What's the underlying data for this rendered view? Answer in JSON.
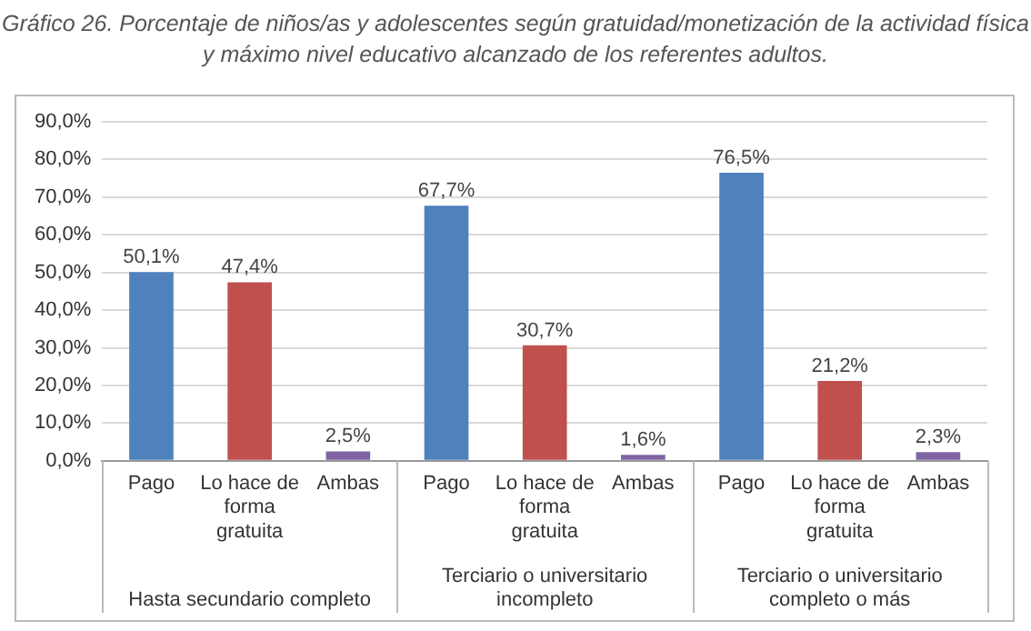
{
  "chart_data": {
    "type": "bar",
    "title": "Gráfico 26. Porcentaje de niños/as y adolescentes según gratuidad/monetización de la actividad física y máximo nivel educativo alcanzado de los referentes adultos.",
    "categories": [
      "Pago",
      "Lo hace de forma gratuita",
      "Ambas",
      "Pago",
      "Lo hace de forma gratuita",
      "Ambas",
      "Pago",
      "Lo hace de forma gratuita",
      "Ambas"
    ],
    "values": [
      50.1,
      47.4,
      2.5,
      67.7,
      30.7,
      1.6,
      76.5,
      21.2,
      2.3
    ],
    "colors": [
      "#4f81bd",
      "#c0504d",
      "#8064a2",
      "#4f81bd",
      "#c0504d",
      "#8064a2",
      "#4f81bd",
      "#c0504d",
      "#8064a2"
    ],
    "value_labels": [
      "50,1%",
      "47,4%",
      "2,5%",
      "67,7%",
      "30,7%",
      "1,6%",
      "76,5%",
      "21,2%",
      "2,3%"
    ],
    "annotations": [
      "Hasta secundario completo",
      "Terciario o universitario incompleto",
      "Terciario o universitario completo o más"
    ],
    "ylim": [
      0,
      90
    ],
    "yticks": [
      {
        "value": 0,
        "label": "0,0%"
      },
      {
        "value": 10,
        "label": "10,0%"
      },
      {
        "value": 20,
        "label": "20,0%"
      },
      {
        "value": 30,
        "label": "30,0%"
      },
      {
        "value": 40,
        "label": "40,0%"
      },
      {
        "value": 50,
        "label": "50,0%"
      },
      {
        "value": 60,
        "label": "60,0%"
      },
      {
        "value": 70,
        "label": "70,0%"
      },
      {
        "value": 80,
        "label": "80,0%"
      },
      {
        "value": 90,
        "label": "90,0%"
      }
    ],
    "grid": "y",
    "legend": false
  }
}
